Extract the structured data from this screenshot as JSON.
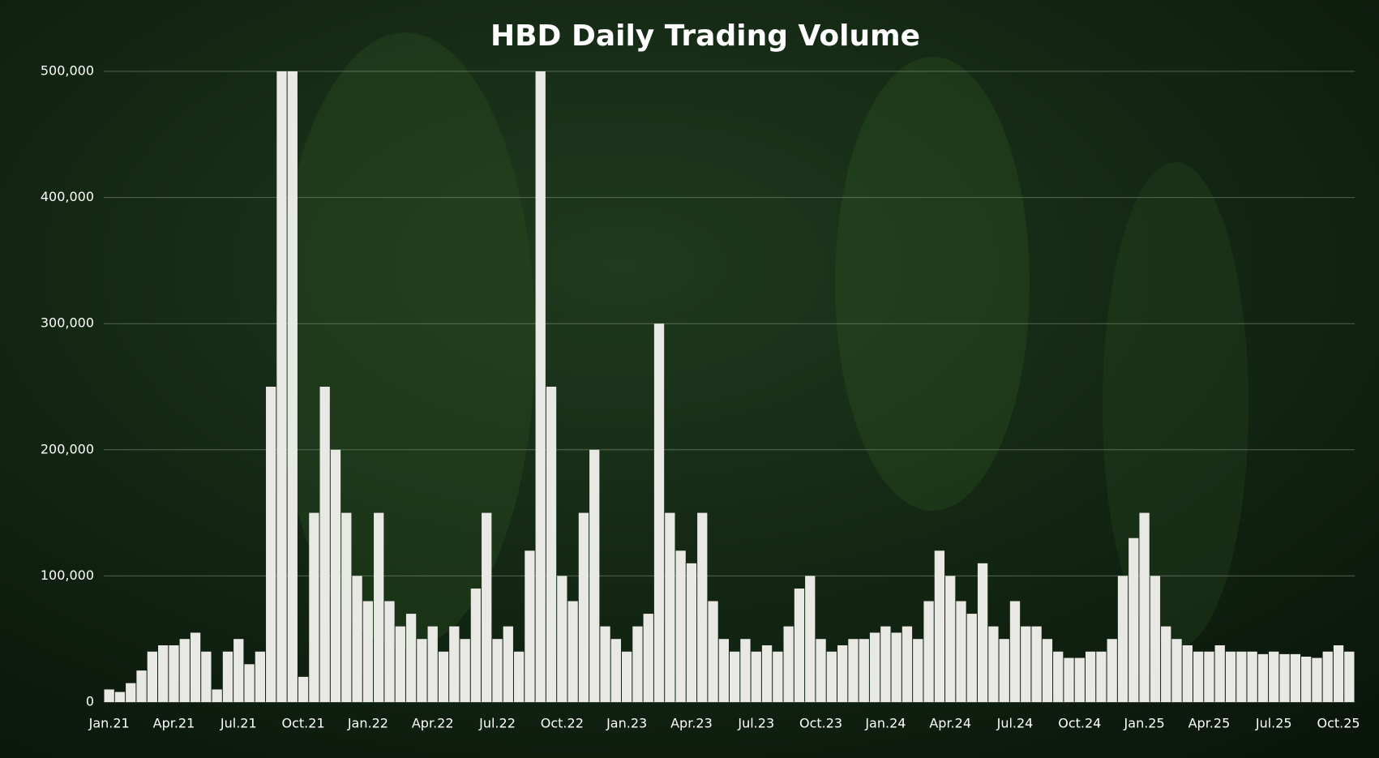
{
  "chart_data": {
    "type": "bar",
    "title": "HBD Daily Trading Volume",
    "categories": [
      "Jan.21",
      null,
      null,
      null,
      null,
      null,
      "Apr.21",
      null,
      null,
      null,
      null,
      null,
      "Jul.21",
      null,
      null,
      null,
      null,
      null,
      "Oct.21",
      null,
      null,
      null,
      null,
      null,
      "Jan.22",
      null,
      null,
      null,
      null,
      null,
      "Apr.22",
      null,
      null,
      null,
      null,
      null,
      "Jul.22",
      null,
      null,
      null,
      null,
      null,
      "Oct.22",
      null,
      null,
      null,
      null,
      null,
      "Jan.23",
      null,
      null,
      null,
      null,
      null,
      "Apr.23",
      null,
      null,
      null,
      null,
      null,
      "Jul.23",
      null,
      null,
      null,
      null,
      null,
      "Oct.23",
      null,
      null,
      null,
      null,
      null,
      "Jan.24",
      null,
      null,
      null,
      null,
      null,
      "Apr.24",
      null,
      null,
      null,
      null,
      null,
      "Jul.24",
      null,
      null,
      null,
      null,
      null,
      "Oct.24",
      null,
      null,
      null,
      null,
      null,
      "Jan.25",
      null,
      null,
      null,
      null,
      null,
      "Apr.25",
      null,
      null,
      null,
      null,
      null,
      "Jul.25",
      null,
      null,
      null,
      null,
      null,
      "Oct.25",
      null
    ],
    "values": [
      10000,
      8000,
      15000,
      25000,
      40000,
      45000,
      45000,
      50000,
      55000,
      40000,
      10000,
      40000,
      50000,
      30000,
      40000,
      250000,
      500000,
      500000,
      20000,
      150000,
      250000,
      200000,
      150000,
      100000,
      80000,
      150000,
      80000,
      60000,
      70000,
      50000,
      60000,
      40000,
      60000,
      50000,
      90000,
      150000,
      50000,
      60000,
      40000,
      120000,
      500000,
      250000,
      100000,
      80000,
      150000,
      200000,
      60000,
      50000,
      40000,
      60000,
      70000,
      300000,
      150000,
      120000,
      110000,
      150000,
      80000,
      50000,
      40000,
      50000,
      40000,
      45000,
      40000,
      60000,
      90000,
      100000,
      50000,
      40000,
      45000,
      50000,
      50000,
      55000,
      60000,
      55000,
      60000,
      50000,
      80000,
      120000,
      100000,
      80000,
      70000,
      110000,
      60000,
      50000,
      80000,
      60000,
      60000,
      50000,
      40000,
      35000,
      35000,
      40000,
      40000,
      50000,
      100000,
      130000,
      150000,
      100000,
      60000,
      50000,
      45000,
      40000,
      40000,
      45000,
      40000,
      40000,
      40000,
      38000,
      40000,
      38000,
      38000,
      36000,
      35000,
      40000,
      45000,
      40000
    ],
    "color": "#e8e8e4",
    "ylim": [
      0,
      500000
    ],
    "yticks": [
      0,
      {
        "value": 100000,
        "label": "100,000"
      },
      {
        "value": 200000,
        "label": "200,000"
      },
      {
        "value": 300000,
        "label": "300,000"
      },
      {
        "value": 400000,
        "label": "400,000"
      },
      {
        "value": 500000,
        "label": "500,000"
      }
    ],
    "grid": true
  }
}
